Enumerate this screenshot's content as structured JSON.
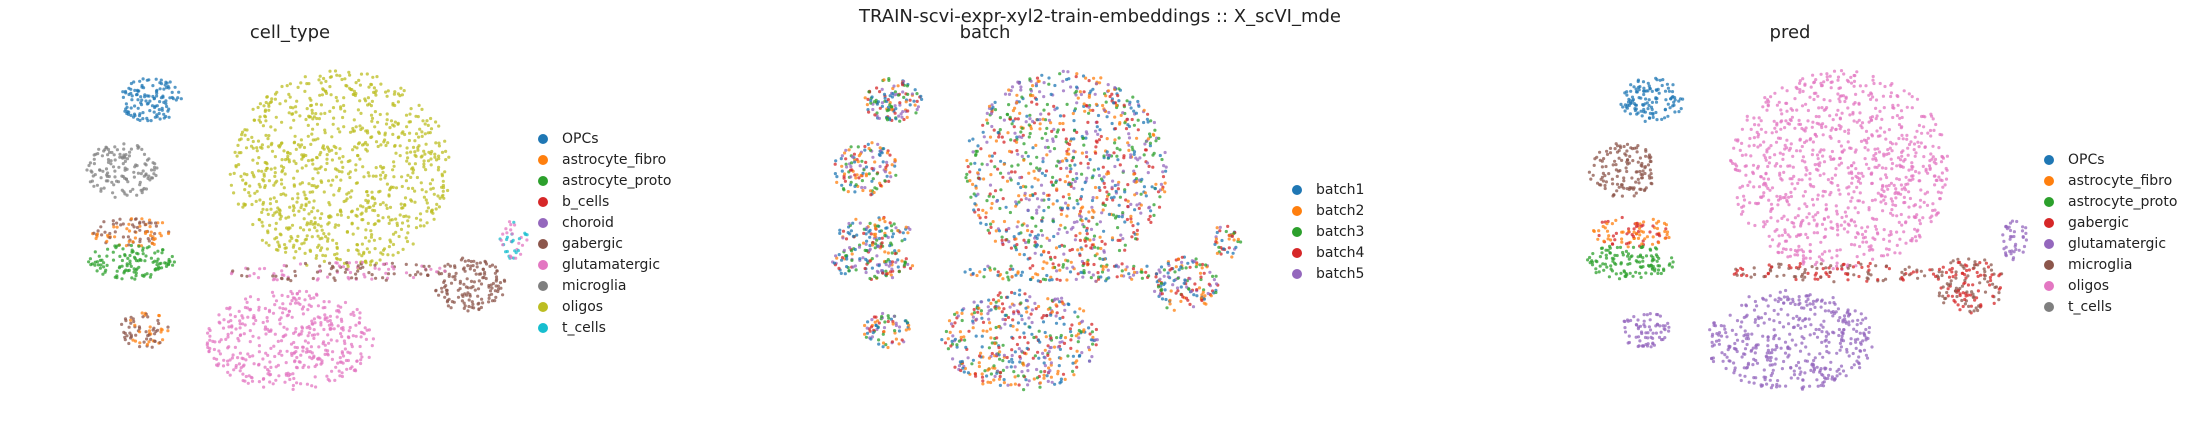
{
  "suptitle": "TRAIN-scvi-expr-xyl2-train-embeddings :: X_scVI_mde",
  "chart_data": [
    {
      "type": "scatter",
      "title": "cell_type",
      "legend_position": "right",
      "categories": [
        {
          "name": "OPCs",
          "color": "#1f77b4"
        },
        {
          "name": "astrocyte_fibro",
          "color": "#ff7f0e"
        },
        {
          "name": "astrocyte_proto",
          "color": "#2ca02c"
        },
        {
          "name": "b_cells",
          "color": "#d62728"
        },
        {
          "name": "choroid",
          "color": "#9467bd"
        },
        {
          "name": "gabergic",
          "color": "#8c564b"
        },
        {
          "name": "glutamatergic",
          "color": "#e377c2"
        },
        {
          "name": "microglia",
          "color": "#7f7f7f"
        },
        {
          "name": "oligos",
          "color": "#bcbd22"
        },
        {
          "name": "t_cells",
          "color": "#17becf"
        }
      ],
      "clusters": [
        {
          "category": "oligos",
          "x": 0.2,
          "y": 0.4
        },
        {
          "category": "OPCs",
          "x": -0.55,
          "y": 0.55
        },
        {
          "category": "microglia",
          "x": -0.8,
          "y": 0.2
        },
        {
          "category": "astrocyte_fibro",
          "x": -0.65,
          "y": -0.05
        },
        {
          "category": "astrocyte_proto",
          "x": -0.75,
          "y": -0.2
        },
        {
          "category": "gabergic",
          "x": 0.65,
          "y": -0.2
        },
        {
          "category": "glutamatergic",
          "x": -0.1,
          "y": -0.65
        },
        {
          "category": "choroid",
          "x": 0.85,
          "y": 0.0
        },
        {
          "category": "b_cells",
          "x": 0.45,
          "y": -0.1
        },
        {
          "category": "t_cells",
          "x": 0.95,
          "y": 0.3
        }
      ]
    },
    {
      "type": "scatter",
      "title": "batch",
      "legend_position": "right",
      "categories": [
        {
          "name": "batch1",
          "color": "#1f77b4"
        },
        {
          "name": "batch2",
          "color": "#ff7f0e"
        },
        {
          "name": "batch3",
          "color": "#2ca02c"
        },
        {
          "name": "batch4",
          "color": "#d62728"
        },
        {
          "name": "batch5",
          "color": "#9467bd"
        }
      ]
    },
    {
      "type": "scatter",
      "title": "pred",
      "legend_position": "right",
      "categories": [
        {
          "name": "OPCs",
          "color": "#1f77b4"
        },
        {
          "name": "astrocyte_fibro",
          "color": "#ff7f0e"
        },
        {
          "name": "astrocyte_proto",
          "color": "#2ca02c"
        },
        {
          "name": "gabergic",
          "color": "#d62728"
        },
        {
          "name": "glutamatergic",
          "color": "#9467bd"
        },
        {
          "name": "microglia",
          "color": "#8c564b"
        },
        {
          "name": "oligos",
          "color": "#e377c2"
        },
        {
          "name": "t_cells",
          "color": "#7f7f7f"
        }
      ],
      "clusters": [
        {
          "category": "oligos",
          "x": 0.2,
          "y": 0.4
        },
        {
          "category": "OPCs",
          "x": -0.55,
          "y": 0.55
        },
        {
          "category": "microglia",
          "x": -0.8,
          "y": 0.2
        },
        {
          "category": "astrocyte_fibro",
          "x": -0.65,
          "y": -0.05
        },
        {
          "category": "astrocyte_proto",
          "x": -0.75,
          "y": -0.2
        },
        {
          "category": "gabergic",
          "x": 0.45,
          "y": -0.1
        },
        {
          "category": "glutamatergic",
          "x": -0.1,
          "y": -0.65
        },
        {
          "category": "t_cells",
          "x": 0.95,
          "y": 0.3
        }
      ]
    }
  ]
}
